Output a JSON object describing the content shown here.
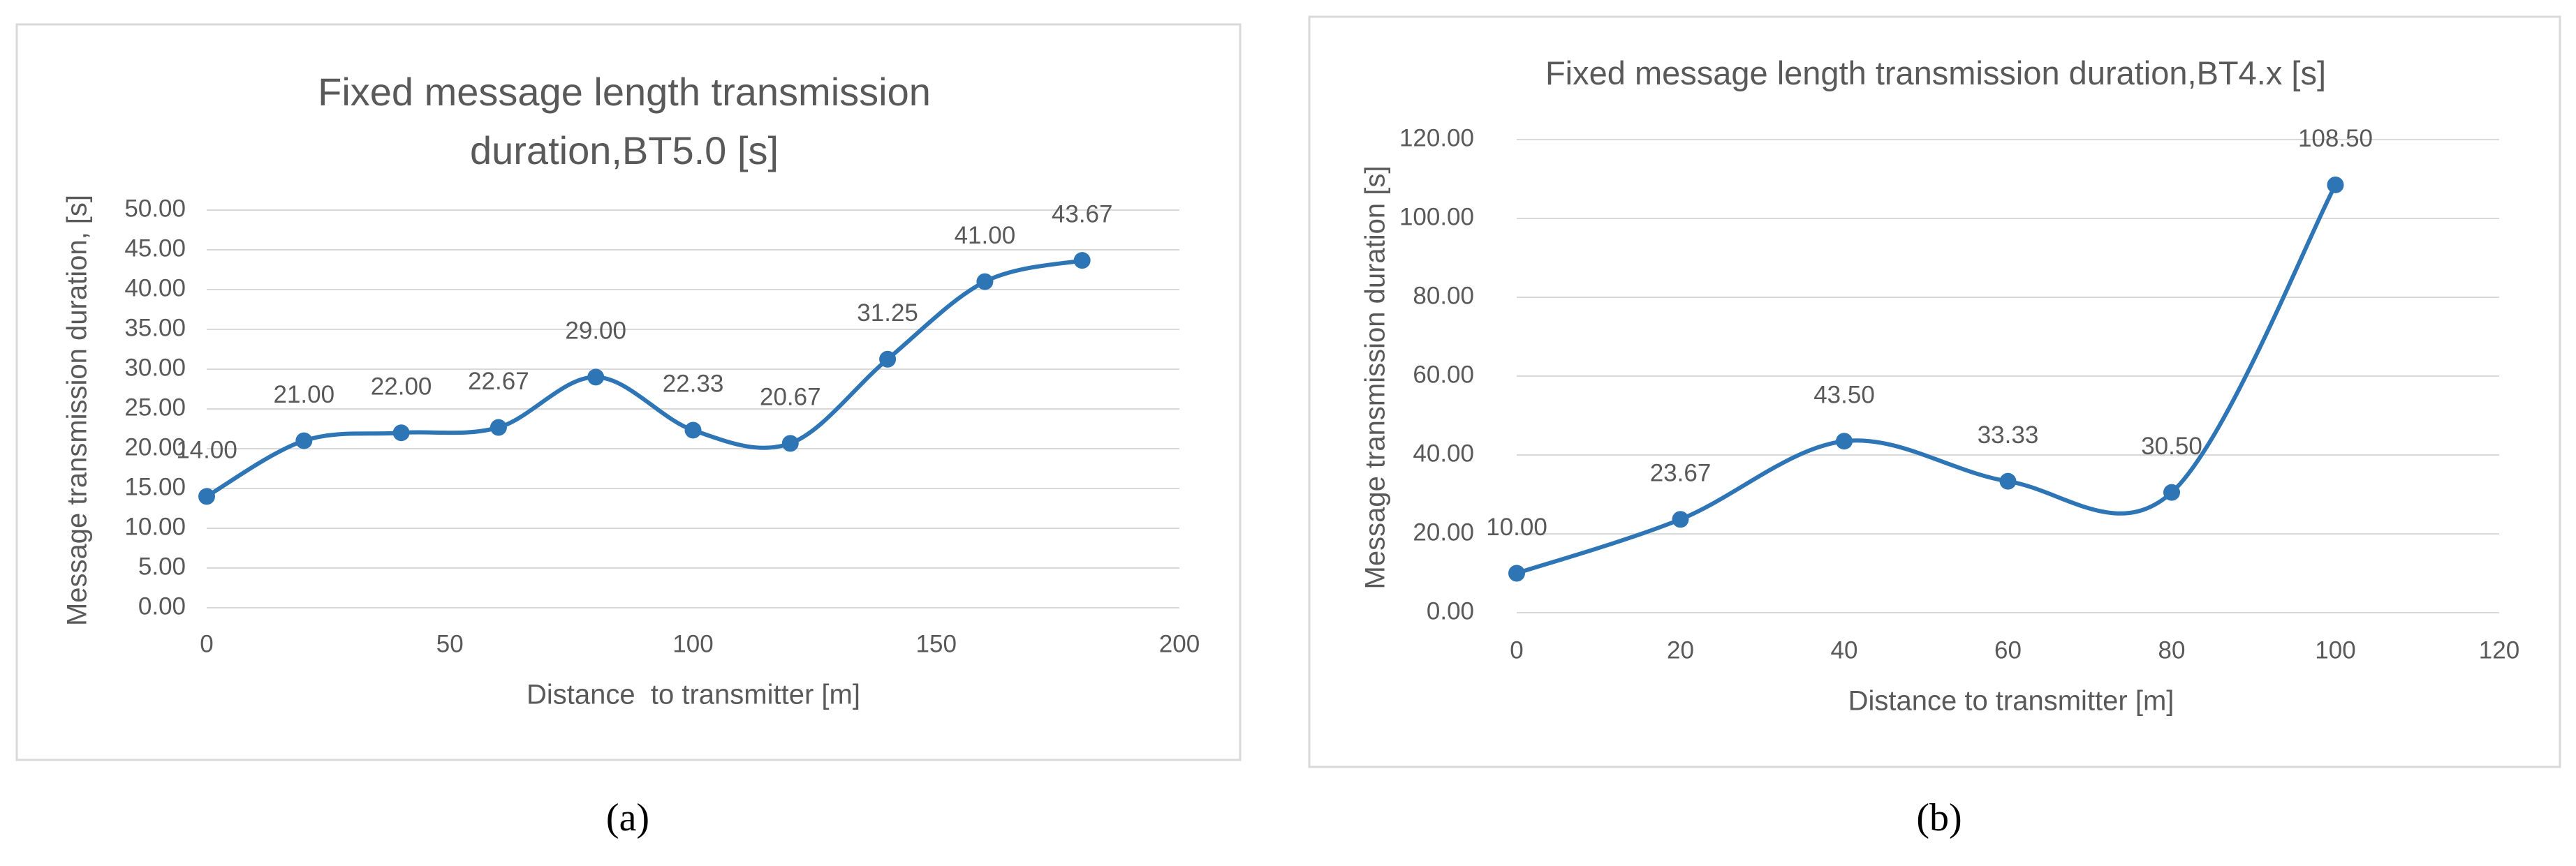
{
  "chart_data": [
    {
      "type": "line",
      "caption": "(a)",
      "title": "Fixed message length transmission duration,BT5.0 [s]",
      "x_label": "Distance  to transmitter [m]",
      "y_label": "Message transmission duration, [s]",
      "x": [
        0,
        20,
        40,
        60,
        80,
        100,
        120,
        140,
        160,
        180
      ],
      "values": [
        14,
        21,
        22,
        22.67,
        29,
        22.33,
        20.67,
        31.25,
        41,
        43.67
      ],
      "value_labels": [
        "14.00",
        "21.00",
        "22.00",
        "22.67",
        "29.00",
        "22.33",
        "20.67",
        "31.25",
        "41.00",
        "43.67"
      ],
      "color": "#2e75b6",
      "smooth": true,
      "grid": true,
      "xlim": [
        0,
        200
      ],
      "xticks": [
        0,
        50,
        100,
        150,
        200
      ],
      "ylim": [
        0,
        50
      ],
      "yticks": [
        {
          "value": 0,
          "label": "0.00"
        },
        {
          "value": 5,
          "label": "5.00"
        },
        {
          "value": 10,
          "label": "10.00"
        },
        {
          "value": 15,
          "label": "15.00"
        },
        {
          "value": 20,
          "label": "20.00"
        },
        {
          "value": 25,
          "label": "25.00"
        },
        {
          "value": 30,
          "label": "30.00"
        },
        {
          "value": 35,
          "label": "35.00"
        },
        {
          "value": 40,
          "label": "40.00"
        },
        {
          "value": 45,
          "label": "45.00"
        },
        {
          "value": 50,
          "label": "50.00"
        }
      ]
    },
    {
      "type": "line",
      "caption": "(b)",
      "title": "Fixed message length transmission duration,BT4.x [s]",
      "x_label": "Distance to transmitter [m]",
      "y_label": "Message transmission duration [s]",
      "x": [
        0,
        20,
        40,
        60,
        80,
        100
      ],
      "values": [
        10,
        23.67,
        43.5,
        33.33,
        30.5,
        108.5
      ],
      "value_labels": [
        "10.00",
        "23.67",
        "43.50",
        "33.33",
        "30.50",
        "108.50"
      ],
      "color": "#2e75b6",
      "smooth": true,
      "grid": true,
      "xlim": [
        0,
        120
      ],
      "xticks": [
        0,
        20,
        40,
        60,
        80,
        100,
        120
      ],
      "ylim": [
        0,
        120
      ],
      "yticks": [
        {
          "value": 0,
          "label": "0.00"
        },
        {
          "value": 20,
          "label": "20.00"
        },
        {
          "value": 40,
          "label": "40.00"
        },
        {
          "value": 60,
          "label": "60.00"
        },
        {
          "value": 80,
          "label": "80.00"
        },
        {
          "value": 100,
          "label": "100.00"
        },
        {
          "value": 120,
          "label": "120.00"
        }
      ]
    }
  ]
}
